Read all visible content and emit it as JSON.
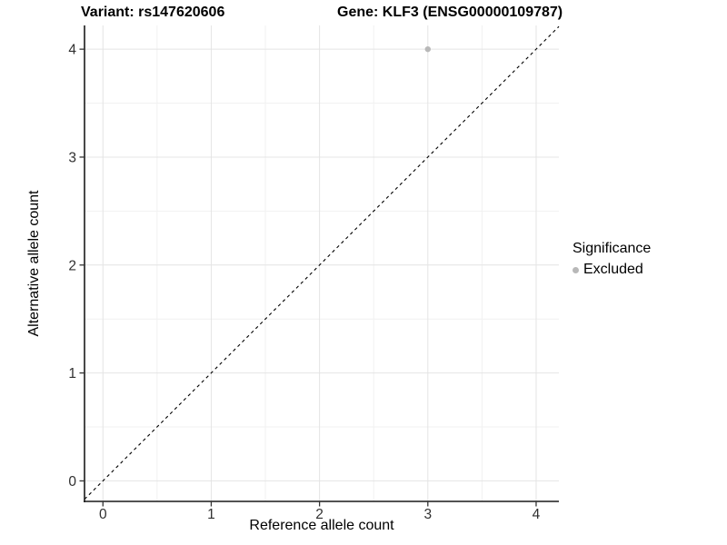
{
  "chart_data": {
    "type": "scatter",
    "title_variant": "Variant: rs147620606",
    "title_gene": "Gene: KLF3 (ENSG00000109787)",
    "xlabel": "Reference allele count",
    "ylabel": "Alternative allele count",
    "xlim": [
      -0.17,
      4.21
    ],
    "ylim": [
      -0.19,
      4.22
    ],
    "xticks": [
      0,
      1,
      2,
      3,
      4
    ],
    "yticks": [
      0,
      1,
      2,
      3,
      4
    ],
    "x_minor_ticks": [
      0.5,
      1.5,
      2.5,
      3.5
    ],
    "y_minor_ticks": [
      0.5,
      1.5,
      2.5,
      3.5
    ],
    "grid": true,
    "points": [
      {
        "x": 3,
        "y": 4,
        "significance": "Excluded"
      }
    ],
    "identity_line": {
      "slope": 1,
      "intercept": 0,
      "style": "dashed"
    },
    "legend": {
      "position": "right",
      "title": "Significance",
      "entries": [
        {
          "label": "Excluded",
          "marker": "circle"
        }
      ]
    },
    "colors": {
      "background": "#ffffff",
      "grid_major": "#e4e4e4",
      "grid_minor": "#f1f1f1",
      "axis_line": "#1a1a1a",
      "tick_mark": "#333333",
      "tick_label": "#303030",
      "title_text": "#000000",
      "point": "#b8b8b8",
      "reference_line": "#000000"
    }
  }
}
